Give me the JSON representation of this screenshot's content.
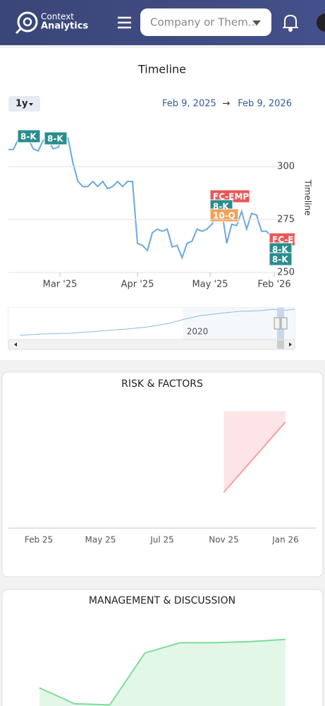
{
  "header": {
    "brand_top": "Context",
    "brand_bottom": "Analytics",
    "search_placeholder": "Company or Them..."
  },
  "timeline": {
    "type": "line",
    "title": "Timeline",
    "range": "1y",
    "date_from": "Feb 9, 2025",
    "date_separator": "→",
    "date_to": "Feb 9, 2026",
    "y_axis_title": "Timeline",
    "color": "#6aa9dc",
    "grid": true,
    "ylim": [
      250,
      317
    ],
    "yticks": [
      250,
      275,
      300
    ],
    "xtick_labels": [
      "Mar '25",
      "Apr '25",
      "May '25",
      "Feb '26"
    ],
    "values": [
      308.1,
      308.1,
      313.1,
      312.4,
      313.1,
      308.4,
      307.4,
      312.4,
      313.1,
      308.4,
      309.1,
      313.4,
      313.4,
      301.7,
      293.0,
      290.6,
      290.6,
      293.0,
      290.6,
      293.0,
      289.6,
      290.6,
      293.0,
      290.6,
      293.0,
      293.0,
      263.8,
      262.8,
      260.4,
      268.8,
      270.5,
      269.5,
      270.5,
      262.1,
      262.8,
      257.0,
      263.8,
      264.8,
      270.5,
      269.5,
      270.5,
      272.8,
      277.2,
      278.9,
      263.8,
      272.8,
      272.1,
      278.9,
      270.5,
      277.9,
      277.2,
      269.5,
      269.5,
      267.1
    ],
    "flags": [
      {
        "label": "8-K",
        "color": "#2a8c8c"
      },
      {
        "label": "8-K",
        "color": "#2a8c8c"
      },
      {
        "label": "FC-EMP",
        "color": "#e85757"
      },
      {
        "label": "8-K",
        "color": "#2a8c8c"
      },
      {
        "label": "10-Q",
        "color": "#f3a156"
      },
      {
        "label": "FC-EMP",
        "color": "#e85757"
      },
      {
        "label": "8-K",
        "color": "#2a8c8c"
      },
      {
        "label": "8-K",
        "color": "#2a8c8c"
      }
    ],
    "navigator_label": "2020"
  },
  "risk": {
    "type": "line",
    "title": "RISK & FACTORS",
    "categories": [
      "Feb 25",
      "May 25",
      "Jul 25",
      "Nov 25",
      "Jan 26"
    ],
    "ylim": [
      0,
      100
    ],
    "line": {
      "color": "#f4a0a0",
      "values": [
        null,
        null,
        null,
        27,
        80
      ]
    },
    "band": {
      "color": "#fde4e6",
      "upper": [
        null,
        null,
        null,
        88,
        88
      ]
    }
  },
  "management": {
    "type": "area",
    "title": "MANAGEMENT & DISCUSSION",
    "color": "#7ddc9a",
    "fill": "#e3f7e8",
    "ylim": [
      0,
      100
    ],
    "values": [
      41,
      27,
      26,
      72,
      81,
      81,
      82,
      84
    ]
  }
}
